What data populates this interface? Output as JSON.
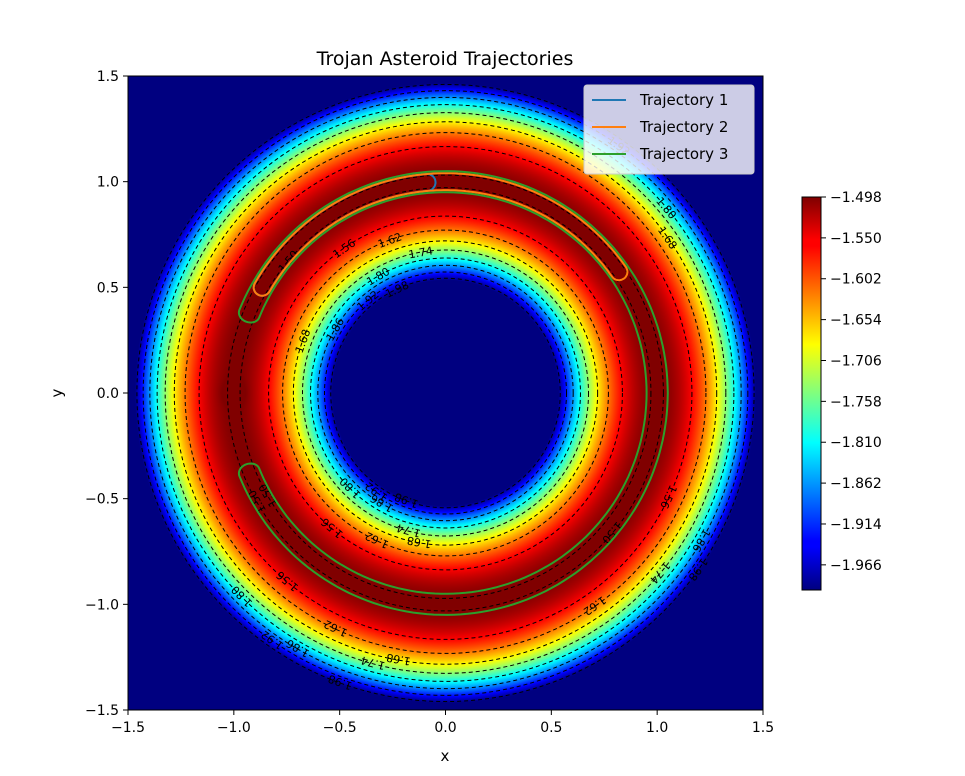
{
  "chart_data": {
    "type": "heatmap",
    "title": "Trojan Asteroid Trajectories",
    "xlabel": "x",
    "ylabel": "y",
    "xlim": [
      -1.5,
      1.5
    ],
    "ylim": [
      -1.5,
      1.5
    ],
    "xticks": [
      "−1.5",
      "−1.0",
      "−0.5",
      "0.0",
      "0.5",
      "1.0",
      "1.5"
    ],
    "yticks": [
      "−1.5",
      "−1.0",
      "−0.5",
      "0.0",
      "0.5",
      "1.0",
      "1.5"
    ],
    "colormap": "jet",
    "colorbar": {
      "vmin": -1.998,
      "vmax": -1.498,
      "ticks": [
        "−1.498",
        "−1.550",
        "−1.602",
        "−1.654",
        "−1.706",
        "−1.758",
        "−1.810",
        "−1.862",
        "−1.914",
        "−1.966"
      ]
    },
    "field": {
      "description": "effective potential, maximum on the ring r≈1, floored near the origin and corners",
      "peak_radius": 1.0,
      "peak_value": -1.498,
      "saturation_value": -1.998
    },
    "contour_style": "black dashed",
    "contour_levels": [
      -1.5,
      -1.56,
      -1.62,
      -1.68,
      -1.74,
      -1.8,
      -1.86,
      -1.92,
      -1.98
    ],
    "contour_labels": [
      "1.50",
      "1.56",
      "1.62",
      "1.68",
      "1.74",
      "1.80",
      "1.86",
      "1.92",
      "1.98"
    ],
    "legend": {
      "placement": "upper right"
    },
    "series": [
      {
        "name": "Trajectory 1",
        "color": "#1f77b4",
        "shape": "thin banana orbit around L4",
        "angle_range_deg": [
          95,
          150
        ],
        "radial_halfwidth": 0.04
      },
      {
        "name": "Trajectory 2",
        "color": "#ff7f0e",
        "shape": "tadpole orbit around L4",
        "angle_range_deg": [
          35,
          150
        ],
        "radial_halfwidth": 0.04
      },
      {
        "name": "Trajectory 3",
        "color": "#2ca02c",
        "shape": "horseshoe orbit",
        "angle_range_deg": [
          -158,
          158
        ],
        "radial_halfwidth": 0.05
      }
    ]
  }
}
